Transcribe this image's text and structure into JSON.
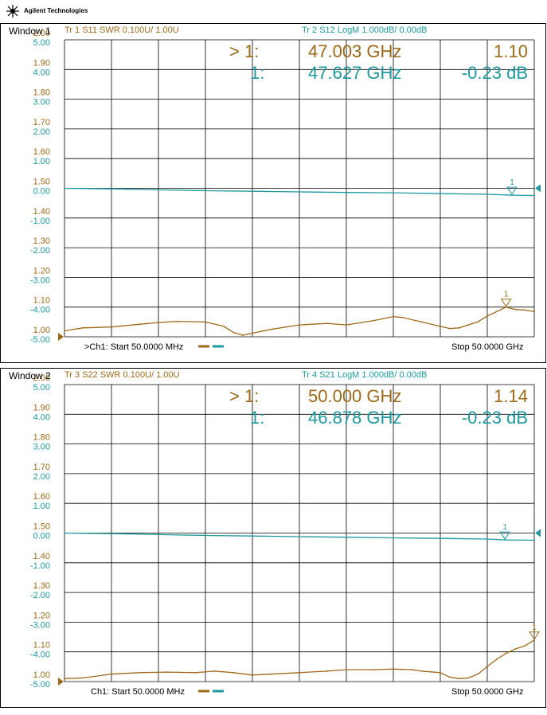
{
  "header": {
    "brand": "Agilent Technologies",
    "logo_icon": "agilent-spark-icon"
  },
  "colors": {
    "trace_odd": "#9c6a1a",
    "trace_even": "#1f99a0",
    "grid": "#000000"
  },
  "windows": [
    {
      "title": "Window 1",
      "traces": [
        {
          "label": "Tr  1   S11 SWR 0.100U/  1.00U",
          "color": "#9c6a1a"
        },
        {
          "label": "Tr  2   S12 LogM 1.000dB/  0.00dB",
          "color": "#1f99a0"
        }
      ],
      "markers": [
        {
          "index": "> 1:",
          "freq": "47.003 GHz",
          "value": "1.10",
          "color": "#9c6a1a"
        },
        {
          "index": "1:",
          "freq": "47.627 GHz",
          "value": "-0.23 dB",
          "color": "#1f99a0"
        }
      ],
      "left_scale": [
        "2.00",
        "1.90",
        "1.80",
        "1.70",
        "1.60",
        "1.50",
        "1.40",
        "1.30",
        "1.20",
        "1.10",
        "1.00"
      ],
      "right_scale": [
        "5.00",
        "4.00",
        "3.00",
        "2.00",
        "1.00",
        "0.00",
        "-1.00",
        "-2.00",
        "-3.00",
        "-4.00",
        "-5.00"
      ],
      "start_label": ">Ch1: Start  50.0000 MHz",
      "stop_label": "Stop  50.0000 GHz"
    },
    {
      "title": "Window 2",
      "traces": [
        {
          "label": "Tr  3   S22 SWR 0.100U/  1.00U",
          "color": "#9c6a1a"
        },
        {
          "label": "Tr  4   S21 LogM 1.000dB/  0.00dB",
          "color": "#1f99a0"
        }
      ],
      "markers": [
        {
          "index": "> 1:",
          "freq": "50.000 GHz",
          "value": "1.14",
          "color": "#9c6a1a"
        },
        {
          "index": "1:",
          "freq": "46.878 GHz",
          "value": "-0.23 dB",
          "color": "#1f99a0"
        }
      ],
      "left_scale": [
        "2.00",
        "1.90",
        "1.80",
        "1.70",
        "1.60",
        "1.50",
        "1.40",
        "1.30",
        "1.20",
        "1.10",
        "1.00"
      ],
      "right_scale": [
        "5.00",
        "4.00",
        "3.00",
        "2.00",
        "1.00",
        "0.00",
        "-1.00",
        "-2.00",
        "-3.00",
        "-4.00",
        "-5.00"
      ],
      "start_label": "Ch1: Start  50.0000 MHz",
      "stop_label": "Stop  50.0000 GHz"
    }
  ],
  "chart_data": [
    {
      "type": "line",
      "x_unit": "GHz",
      "xlim": [
        0.05,
        50
      ],
      "y_left_lim": [
        1.0,
        2.0
      ],
      "y_right_lim": [
        -5,
        5
      ],
      "grid": true,
      "series": [
        {
          "name": "S11 SWR",
          "axis": "left",
          "x": [
            0.05,
            2,
            5,
            8,
            10,
            12,
            15,
            17,
            18,
            19,
            20,
            22,
            25,
            28,
            30,
            33,
            35,
            36,
            38,
            40,
            41,
            42,
            44,
            45,
            46,
            47,
            48,
            49,
            50
          ],
          "y": [
            1.02,
            1.03,
            1.033,
            1.042,
            1.048,
            1.052,
            1.05,
            1.035,
            1.015,
            1.005,
            1.012,
            1.025,
            1.04,
            1.045,
            1.04,
            1.055,
            1.068,
            1.065,
            1.05,
            1.035,
            1.028,
            1.03,
            1.05,
            1.07,
            1.085,
            1.1,
            1.092,
            1.09,
            1.085
          ]
        },
        {
          "name": "S12 LogM",
          "axis": "right",
          "x": [
            0.05,
            5,
            10,
            15,
            20,
            25,
            30,
            35,
            40,
            45,
            47.627,
            50
          ],
          "y": [
            0.0,
            -0.02,
            -0.05,
            -0.08,
            -0.1,
            -0.12,
            -0.14,
            -0.15,
            -0.18,
            -0.2,
            -0.23,
            -0.24
          ]
        }
      ]
    },
    {
      "type": "line",
      "x_unit": "GHz",
      "xlim": [
        0.05,
        50
      ],
      "y_left_lim": [
        1.0,
        2.0
      ],
      "y_right_lim": [
        -5,
        5
      ],
      "grid": true,
      "series": [
        {
          "name": "S22 SWR",
          "axis": "left",
          "x": [
            0.05,
            2,
            5,
            8,
            11,
            14,
            16,
            18,
            20,
            22,
            25,
            28,
            30,
            33,
            35,
            37,
            38,
            40,
            41,
            42,
            43,
            44,
            45,
            46,
            47,
            48,
            49,
            50
          ],
          "y": [
            1.01,
            1.012,
            1.025,
            1.03,
            1.032,
            1.03,
            1.035,
            1.03,
            1.022,
            1.025,
            1.03,
            1.035,
            1.04,
            1.04,
            1.042,
            1.04,
            1.035,
            1.03,
            1.015,
            1.01,
            1.012,
            1.025,
            1.05,
            1.075,
            1.095,
            1.11,
            1.12,
            1.14
          ]
        },
        {
          "name": "S21 LogM",
          "axis": "right",
          "x": [
            0.05,
            5,
            10,
            15,
            20,
            25,
            30,
            35,
            40,
            45,
            46.878,
            50
          ],
          "y": [
            0.0,
            -0.02,
            -0.05,
            -0.08,
            -0.1,
            -0.12,
            -0.14,
            -0.16,
            -0.18,
            -0.2,
            -0.23,
            -0.24
          ]
        }
      ]
    }
  ]
}
